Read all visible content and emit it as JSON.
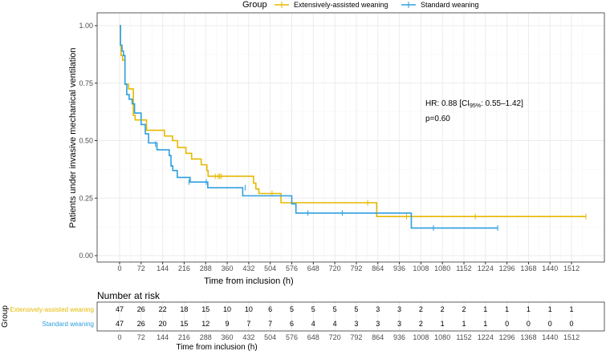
{
  "chart_data": {
    "type": "line",
    "subtype": "kaplan-meier",
    "xlabel": "Time from inclusion (h)",
    "ylabel": "Patients under invasive mechanical ventilation",
    "xlim": [
      0,
      1560
    ],
    "ylim": [
      0,
      1
    ],
    "x_ticks": [
      0,
      72,
      144,
      216,
      288,
      360,
      432,
      504,
      576,
      648,
      720,
      792,
      864,
      936,
      1008,
      1080,
      1152,
      1224,
      1296,
      1368,
      1440,
      1512
    ],
    "y_ticks": [
      "0.00",
      "0.25",
      "0.50",
      "0.75",
      "1.00"
    ],
    "grid": true,
    "legend": {
      "title": "Group",
      "position": "top"
    },
    "annotation": {
      "hr": "HR: 0.88 [CI",
      "sub": "95%",
      "ci": ": 0.55–1.42]",
      "p": "p=0.60"
    },
    "series": [
      {
        "name": "Extensively-assisted weaning",
        "color": "#E7B800",
        "steps": [
          [
            0,
            1
          ],
          [
            3,
            0.915
          ],
          [
            5,
            0.87
          ],
          [
            10,
            0.85
          ],
          [
            18,
            0.745
          ],
          [
            30,
            0.725
          ],
          [
            46,
            0.61
          ],
          [
            52,
            0.59
          ],
          [
            90,
            0.545
          ],
          [
            150,
            0.52
          ],
          [
            177,
            0.5
          ],
          [
            194,
            0.47
          ],
          [
            222,
            0.445
          ],
          [
            241,
            0.42
          ],
          [
            273,
            0.395
          ],
          [
            292,
            0.37
          ],
          [
            296,
            0.345
          ],
          [
            448,
            0.315
          ],
          [
            456,
            0.29
          ],
          [
            466,
            0.27
          ],
          [
            540,
            0.23
          ],
          [
            860,
            0.17
          ]
        ],
        "end": 1560,
        "censored": [
          [
            320,
            0.345
          ],
          [
            330,
            0.345
          ],
          [
            335,
            0.345
          ],
          [
            340,
            0.345
          ],
          [
            510,
            0.27
          ],
          [
            830,
            0.23
          ],
          [
            960,
            0.17
          ],
          [
            1190,
            0.17
          ],
          [
            1560,
            0.17
          ]
        ]
      },
      {
        "name": "Standard weaning",
        "color": "#2E9FDF",
        "steps": [
          [
            0,
            1
          ],
          [
            3,
            0.915
          ],
          [
            8,
            0.89
          ],
          [
            13,
            0.87
          ],
          [
            18,
            0.745
          ],
          [
            24,
            0.7
          ],
          [
            32,
            0.68
          ],
          [
            42,
            0.66
          ],
          [
            50,
            0.62
          ],
          [
            72,
            0.57
          ],
          [
            86,
            0.53
          ],
          [
            97,
            0.49
          ],
          [
            125,
            0.46
          ],
          [
            166,
            0.435
          ],
          [
            172,
            0.39
          ],
          [
            178,
            0.37
          ],
          [
            193,
            0.34
          ],
          [
            236,
            0.32
          ],
          [
            295,
            0.295
          ],
          [
            412,
            0.26
          ],
          [
            576,
            0.225
          ],
          [
            590,
            0.185
          ],
          [
            976,
            0.12
          ]
        ],
        "end": 1265,
        "censored": [
          [
            120,
            0.485
          ],
          [
            232,
            0.32
          ],
          [
            290,
            0.32
          ],
          [
            420,
            0.295
          ],
          [
            630,
            0.185
          ],
          [
            745,
            0.185
          ],
          [
            1050,
            0.12
          ],
          [
            1265,
            0.12
          ]
        ]
      }
    ]
  },
  "risk_table": {
    "title": "Number at risk",
    "y_title": "Group",
    "xlabel": "Time from inclusion (h)",
    "rows": [
      {
        "label": "Extensively-assisted weaning",
        "color": "#E7B800",
        "values": [
          "47",
          "26",
          "22",
          "18",
          "15",
          "10",
          "10",
          "6",
          "5",
          "5",
          "5",
          "5",
          "3",
          "3",
          "2",
          "2",
          "2",
          "1",
          "1",
          "1",
          "1",
          "1"
        ]
      },
      {
        "label": "Standard weaning",
        "color": "#2E9FDF",
        "values": [
          "47",
          "26",
          "20",
          "15",
          "12",
          "9",
          "7",
          "7",
          "6",
          "4",
          "4",
          "3",
          "3",
          "3",
          "2",
          "1",
          "1",
          "1",
          "0",
          "0",
          "0",
          "0"
        ]
      }
    ]
  }
}
